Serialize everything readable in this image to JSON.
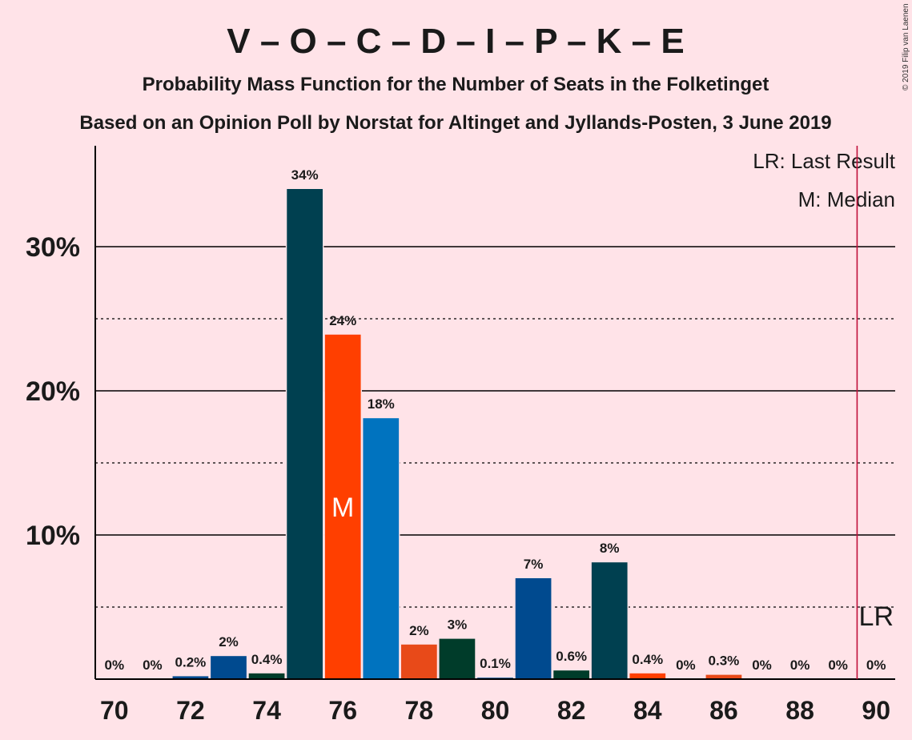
{
  "chart_data": {
    "type": "bar",
    "title": "V – O – C – D – I – P – K – E",
    "subtitle": "Probability Mass Function for the Number of Seats in the Folketinget",
    "subtitle2": "Based on an Opinion Poll by Norstat for Altinget and Jyllands-Posten, 3 June 2019",
    "copyright": "© 2019 Filip van Laenen",
    "legend": {
      "last_result": "LR: Last Result",
      "median": "M: Median",
      "placement": "top-right"
    },
    "ylim": [
      0,
      37
    ],
    "xlim": [
      69.5,
      90.5
    ],
    "yticks": [
      {
        "value": 10,
        "label": "10%"
      },
      {
        "value": 20,
        "label": "20%"
      },
      {
        "value": 30,
        "label": "30%"
      }
    ],
    "minor_gridlines": [
      5,
      15,
      25
    ],
    "xticks": [
      70,
      72,
      74,
      76,
      78,
      80,
      82,
      84,
      86,
      88,
      90
    ],
    "median_seat": 76,
    "median_marker": "M",
    "last_result_seat": 89.5,
    "last_result_marker": "LR",
    "bars": [
      {
        "x": 70,
        "value": 0,
        "label": "0%",
        "color": "#004050"
      },
      {
        "x": 71,
        "value": 0,
        "label": "0%",
        "color": "#004050"
      },
      {
        "x": 72,
        "value": 0.2,
        "label": "0.2%",
        "color": "#004A8F"
      },
      {
        "x": 73,
        "value": 1.6,
        "label": "2%",
        "color": "#004A8F"
      },
      {
        "x": 74,
        "value": 0.4,
        "label": "0.4%",
        "color": "#003C2A"
      },
      {
        "x": 75,
        "value": 34,
        "label": "34%",
        "color": "#004050"
      },
      {
        "x": 76,
        "value": 23.9,
        "label": "24%",
        "color": "#FF3F00"
      },
      {
        "x": 77,
        "value": 18.1,
        "label": "18%",
        "color": "#0073BF"
      },
      {
        "x": 78,
        "value": 2.4,
        "label": "2%",
        "color": "#E84A19"
      },
      {
        "x": 79,
        "value": 2.8,
        "label": "3%",
        "color": "#003C2A"
      },
      {
        "x": 80,
        "value": 0.1,
        "label": "0.1%",
        "color": "#004A8F"
      },
      {
        "x": 81,
        "value": 7,
        "label": "7%",
        "color": "#004A8F"
      },
      {
        "x": 82,
        "value": 0.6,
        "label": "0.6%",
        "color": "#003C2A"
      },
      {
        "x": 83,
        "value": 8.1,
        "label": "8%",
        "color": "#004050"
      },
      {
        "x": 84,
        "value": 0.4,
        "label": "0.4%",
        "color": "#FF3F00"
      },
      {
        "x": 85,
        "value": 0,
        "label": "0%",
        "color": "#004050"
      },
      {
        "x": 86,
        "value": 0.3,
        "label": "0.3%",
        "color": "#E84A19"
      },
      {
        "x": 87,
        "value": 0,
        "label": "0%",
        "color": "#004050"
      },
      {
        "x": 88,
        "value": 0,
        "label": "0%",
        "color": "#004050"
      },
      {
        "x": 89,
        "value": 0,
        "label": "0%",
        "color": "#004050"
      },
      {
        "x": 90,
        "value": 0,
        "label": "0%",
        "color": "#004050"
      }
    ],
    "colors": {
      "background": "#FFE3E8",
      "axis": "#000000",
      "last_result_line": "#C0103A"
    }
  }
}
